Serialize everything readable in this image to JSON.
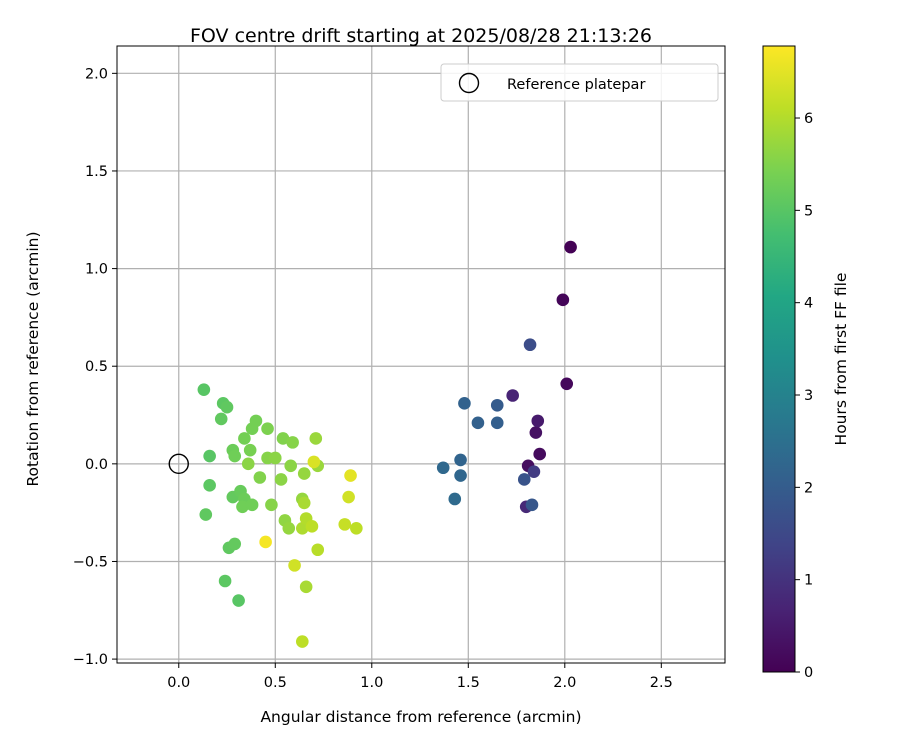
{
  "chart_data": {
    "type": "scatter",
    "title": "FOV centre drift starting at 2025/08/28 21:13:26",
    "xlabel": "Angular distance from reference (arcmin)",
    "ylabel": "Rotation from reference (arcmin)",
    "xlim": [
      -0.32,
      2.83
    ],
    "ylim": [
      -1.02,
      2.14
    ],
    "xticks": [
      0.0,
      0.5,
      1.0,
      1.5,
      2.0,
      2.5
    ],
    "xtick_labels": [
      "0.0",
      "0.5",
      "1.0",
      "1.5",
      "2.0",
      "2.5"
    ],
    "yticks": [
      -1.0,
      -0.5,
      0.0,
      0.5,
      1.0,
      1.5,
      2.0
    ],
    "ytick_labels": [
      "−1.0",
      "−0.5",
      "0.0",
      "0.5",
      "1.0",
      "1.5",
      "2.0"
    ],
    "grid": true,
    "legend": {
      "placement": "top-right",
      "entries": [
        {
          "label": "Reference platepar",
          "marker": "open-circle"
        }
      ]
    },
    "reference_point": {
      "x": 0.0,
      "y": 0.0
    },
    "colorbar": {
      "label": "Hours from first FF file",
      "colormap": "viridis",
      "range": [
        0,
        6.78
      ],
      "ticks": [
        0,
        1,
        2,
        3,
        4,
        5,
        6
      ],
      "tick_labels": [
        "0",
        "1",
        "2",
        "3",
        "4",
        "5",
        "6"
      ]
    },
    "points": [
      {
        "x": 2.03,
        "y": 1.11,
        "hours": 0.02
      },
      {
        "x": 1.99,
        "y": 0.84,
        "hours": 0.08
      },
      {
        "x": 2.01,
        "y": 0.41,
        "hours": 0.14
      },
      {
        "x": 1.87,
        "y": 0.05,
        "hours": 0.2
      },
      {
        "x": 1.81,
        "y": -0.01,
        "hours": 0.26
      },
      {
        "x": 1.85,
        "y": 0.16,
        "hours": 0.32
      },
      {
        "x": 1.86,
        "y": 0.22,
        "hours": 0.5
      },
      {
        "x": 1.73,
        "y": 0.35,
        "hours": 0.7
      },
      {
        "x": 1.8,
        "y": -0.22,
        "hours": 0.8
      },
      {
        "x": 1.84,
        "y": -0.04,
        "hours": 1.2
      },
      {
        "x": 1.82,
        "y": 0.61,
        "hours": 1.6
      },
      {
        "x": 1.79,
        "y": -0.08,
        "hours": 1.75
      },
      {
        "x": 1.83,
        "y": -0.21,
        "hours": 1.85
      },
      {
        "x": 1.65,
        "y": 0.3,
        "hours": 1.95
      },
      {
        "x": 1.65,
        "y": 0.21,
        "hours": 2.05
      },
      {
        "x": 1.55,
        "y": 0.21,
        "hours": 2.1
      },
      {
        "x": 1.48,
        "y": 0.31,
        "hours": 2.15
      },
      {
        "x": 1.46,
        "y": 0.02,
        "hours": 2.2
      },
      {
        "x": 1.46,
        "y": -0.06,
        "hours": 2.25
      },
      {
        "x": 1.37,
        "y": -0.02,
        "hours": 2.3
      },
      {
        "x": 1.43,
        "y": -0.18,
        "hours": 2.35
      },
      {
        "x": 0.13,
        "y": 0.38,
        "hours": 5.0
      },
      {
        "x": 0.23,
        "y": 0.31,
        "hours": 5.05
      },
      {
        "x": 0.25,
        "y": 0.29,
        "hours": 5.1
      },
      {
        "x": 0.22,
        "y": 0.23,
        "hours": 5.12
      },
      {
        "x": 0.16,
        "y": 0.04,
        "hours": 5.0
      },
      {
        "x": 0.16,
        "y": -0.11,
        "hours": 5.05
      },
      {
        "x": 0.14,
        "y": -0.26,
        "hours": 5.1
      },
      {
        "x": 0.24,
        "y": -0.6,
        "hours": 5.05
      },
      {
        "x": 0.31,
        "y": -0.7,
        "hours": 5.0
      },
      {
        "x": 0.26,
        "y": -0.43,
        "hours": 5.1
      },
      {
        "x": 0.29,
        "y": -0.41,
        "hours": 5.15
      },
      {
        "x": 0.28,
        "y": -0.17,
        "hours": 5.15
      },
      {
        "x": 0.32,
        "y": -0.14,
        "hours": 5.2
      },
      {
        "x": 0.34,
        "y": -0.18,
        "hours": 5.25
      },
      {
        "x": 0.33,
        "y": -0.22,
        "hours": 5.3
      },
      {
        "x": 0.38,
        "y": -0.21,
        "hours": 5.3
      },
      {
        "x": 0.28,
        "y": 0.07,
        "hours": 5.25
      },
      {
        "x": 0.29,
        "y": 0.04,
        "hours": 5.3
      },
      {
        "x": 0.34,
        "y": 0.13,
        "hours": 5.35
      },
      {
        "x": 0.38,
        "y": 0.18,
        "hours": 5.35
      },
      {
        "x": 0.4,
        "y": 0.22,
        "hours": 5.35
      },
      {
        "x": 0.37,
        "y": 0.07,
        "hours": 5.4
      },
      {
        "x": 0.46,
        "y": 0.18,
        "hours": 5.45
      },
      {
        "x": 0.36,
        "y": 0.0,
        "hours": 5.6
      },
      {
        "x": 0.42,
        "y": -0.07,
        "hours": 5.5
      },
      {
        "x": 0.46,
        "y": 0.03,
        "hours": 5.55
      },
      {
        "x": 0.5,
        "y": 0.03,
        "hours": 5.6
      },
      {
        "x": 0.48,
        "y": -0.21,
        "hours": 5.55
      },
      {
        "x": 0.54,
        "y": 0.13,
        "hours": 5.5
      },
      {
        "x": 0.59,
        "y": 0.11,
        "hours": 5.55
      },
      {
        "x": 0.58,
        "y": -0.01,
        "hours": 5.6
      },
      {
        "x": 0.53,
        "y": -0.08,
        "hours": 5.6
      },
      {
        "x": 0.55,
        "y": -0.29,
        "hours": 5.65
      },
      {
        "x": 0.57,
        "y": -0.33,
        "hours": 5.7
      },
      {
        "x": 0.64,
        "y": -0.18,
        "hours": 5.7
      },
      {
        "x": 0.65,
        "y": -0.05,
        "hours": 5.7
      },
      {
        "x": 0.71,
        "y": 0.13,
        "hours": 5.75
      },
      {
        "x": 0.72,
        "y": -0.01,
        "hours": 5.75
      },
      {
        "x": 0.65,
        "y": -0.2,
        "hours": 5.9
      },
      {
        "x": 0.64,
        "y": -0.33,
        "hours": 5.95
      },
      {
        "x": 0.66,
        "y": -0.28,
        "hours": 6.0
      },
      {
        "x": 0.69,
        "y": -0.32,
        "hours": 6.1
      },
      {
        "x": 0.72,
        "y": -0.44,
        "hours": 6.05
      },
      {
        "x": 0.66,
        "y": -0.63,
        "hours": 5.9
      },
      {
        "x": 0.64,
        "y": -0.91,
        "hours": 6.1
      },
      {
        "x": 0.6,
        "y": -0.52,
        "hours": 6.3
      },
      {
        "x": 0.45,
        "y": -0.4,
        "hours": 6.7
      },
      {
        "x": 0.7,
        "y": 0.01,
        "hours": 6.4
      },
      {
        "x": 0.89,
        "y": -0.06,
        "hours": 6.5
      },
      {
        "x": 0.88,
        "y": -0.17,
        "hours": 6.3
      },
      {
        "x": 0.86,
        "y": -0.31,
        "hours": 6.2
      },
      {
        "x": 0.92,
        "y": -0.33,
        "hours": 6.1
      }
    ]
  }
}
